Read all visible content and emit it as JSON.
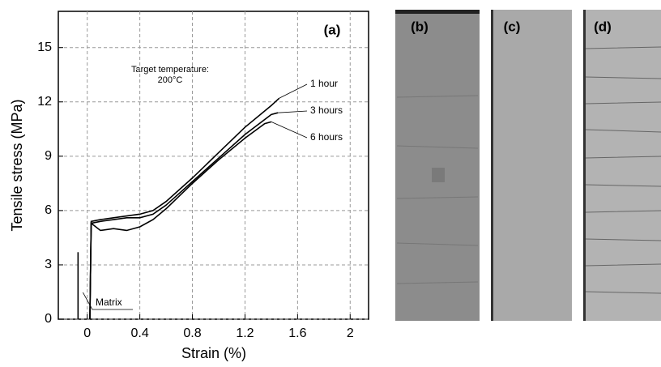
{
  "chart_data": {
    "type": "line",
    "x_label": "Strain (%)",
    "y_label": "Tensile stress (MPa)",
    "annotations": [
      "(a)",
      "Target temperature:",
      "200°C"
    ],
    "xlim": [
      -0.22,
      2.14
    ],
    "ylim": [
      0,
      17
    ],
    "xticks": [
      0,
      0.4,
      0.8,
      1.2,
      1.6,
      2
    ],
    "yticks": [
      0,
      3,
      6,
      9,
      12,
      15
    ],
    "grid": true,
    "series": [
      {
        "name": "1 hour",
        "color": "#000000",
        "x": [
          0.02,
          0.03,
          0.1,
          0.2,
          0.3,
          0.4,
          0.5,
          0.6,
          0.8,
          1.0,
          1.2,
          1.4,
          1.46
        ],
        "values": [
          0,
          5.4,
          5.5,
          5.6,
          5.7,
          5.8,
          6.0,
          6.5,
          7.8,
          9.2,
          10.6,
          11.8,
          12.2
        ]
      },
      {
        "name": "3 hours",
        "color": "#000000",
        "x": [
          0.02,
          0.03,
          0.1,
          0.2,
          0.3,
          0.4,
          0.5,
          0.6,
          0.8,
          1.0,
          1.2,
          1.4,
          1.45
        ],
        "values": [
          0,
          5.3,
          5.4,
          5.5,
          5.6,
          5.6,
          5.8,
          6.3,
          7.6,
          8.9,
          10.2,
          11.3,
          11.4
        ]
      },
      {
        "name": "6 hours",
        "color": "#000000",
        "x": [
          0.02,
          0.03,
          0.1,
          0.2,
          0.3,
          0.4,
          0.5,
          0.6,
          0.8,
          1.0,
          1.2,
          1.35,
          1.4
        ],
        "values": [
          0,
          5.3,
          4.9,
          5.0,
          4.9,
          5.1,
          5.5,
          6.1,
          7.5,
          8.8,
          10.0,
          10.8,
          10.9
        ]
      },
      {
        "name": "Matrix",
        "color": "#000000",
        "x": [
          -0.07,
          -0.07
        ],
        "values": [
          0,
          3.7
        ]
      }
    ]
  },
  "photos": {
    "labels": [
      "(b)",
      "(c)",
      "(d)"
    ]
  }
}
